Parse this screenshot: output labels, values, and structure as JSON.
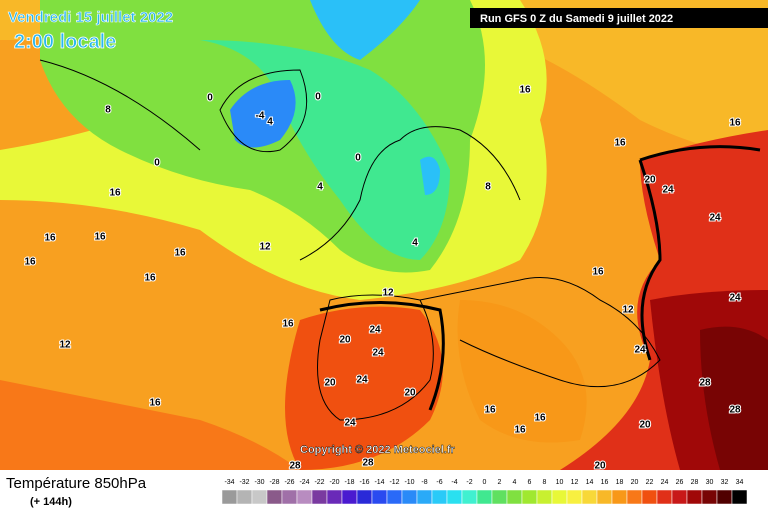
{
  "header": {
    "date": "Vendredi 15 juillet 2022",
    "time": "2:00 locale",
    "run": "Run GFS 0 Z du Samedi 9 juillet 2022"
  },
  "copyright": "Copyright © 2022 Meteociel.fr",
  "footer": {
    "title": "Température 850hPa",
    "lead": "(+ 144h)"
  },
  "map_labels": [
    16,
    16,
    16,
    16,
    16,
    16,
    16,
    16,
    16,
    16,
    16,
    16,
    16,
    16,
    16,
    12,
    12,
    12,
    12,
    20,
    20,
    20,
    20,
    20,
    20,
    24,
    24,
    24,
    24,
    24,
    24,
    24,
    24,
    28,
    28,
    28,
    28,
    0,
    0,
    0,
    0,
    4,
    4,
    4,
    8,
    8,
    -4
  ],
  "scale": {
    "labels": [
      -34,
      -32,
      -30,
      -28,
      -26,
      -24,
      -22,
      -20,
      -18,
      -16,
      -14,
      -12,
      -10,
      -8,
      -6,
      -4,
      -2,
      0,
      2,
      4,
      6,
      8,
      10,
      12,
      14,
      16,
      18,
      20,
      22,
      24,
      26,
      28,
      30,
      32,
      34
    ],
    "colors": [
      "#9a9a9a",
      "#b4b4b4",
      "#c8c8c8",
      "#8a5a8a",
      "#a070a8",
      "#b88cc0",
      "#7a3aa0",
      "#6a2ab8",
      "#4a1ad0",
      "#2a2ad8",
      "#2a4af0",
      "#2a6af8",
      "#2a8af8",
      "#2aaaf8",
      "#2acaf8",
      "#2ae0f0",
      "#40f0d0",
      "#40e890",
      "#60e060",
      "#80e040",
      "#a0e830",
      "#c8f030",
      "#e8f838",
      "#f8f040",
      "#f8d838",
      "#f8b828",
      "#f89818",
      "#f87818",
      "#f05010",
      "#e03018",
      "#c81818",
      "#a00808",
      "#780404",
      "#500000",
      "#000000"
    ]
  }
}
